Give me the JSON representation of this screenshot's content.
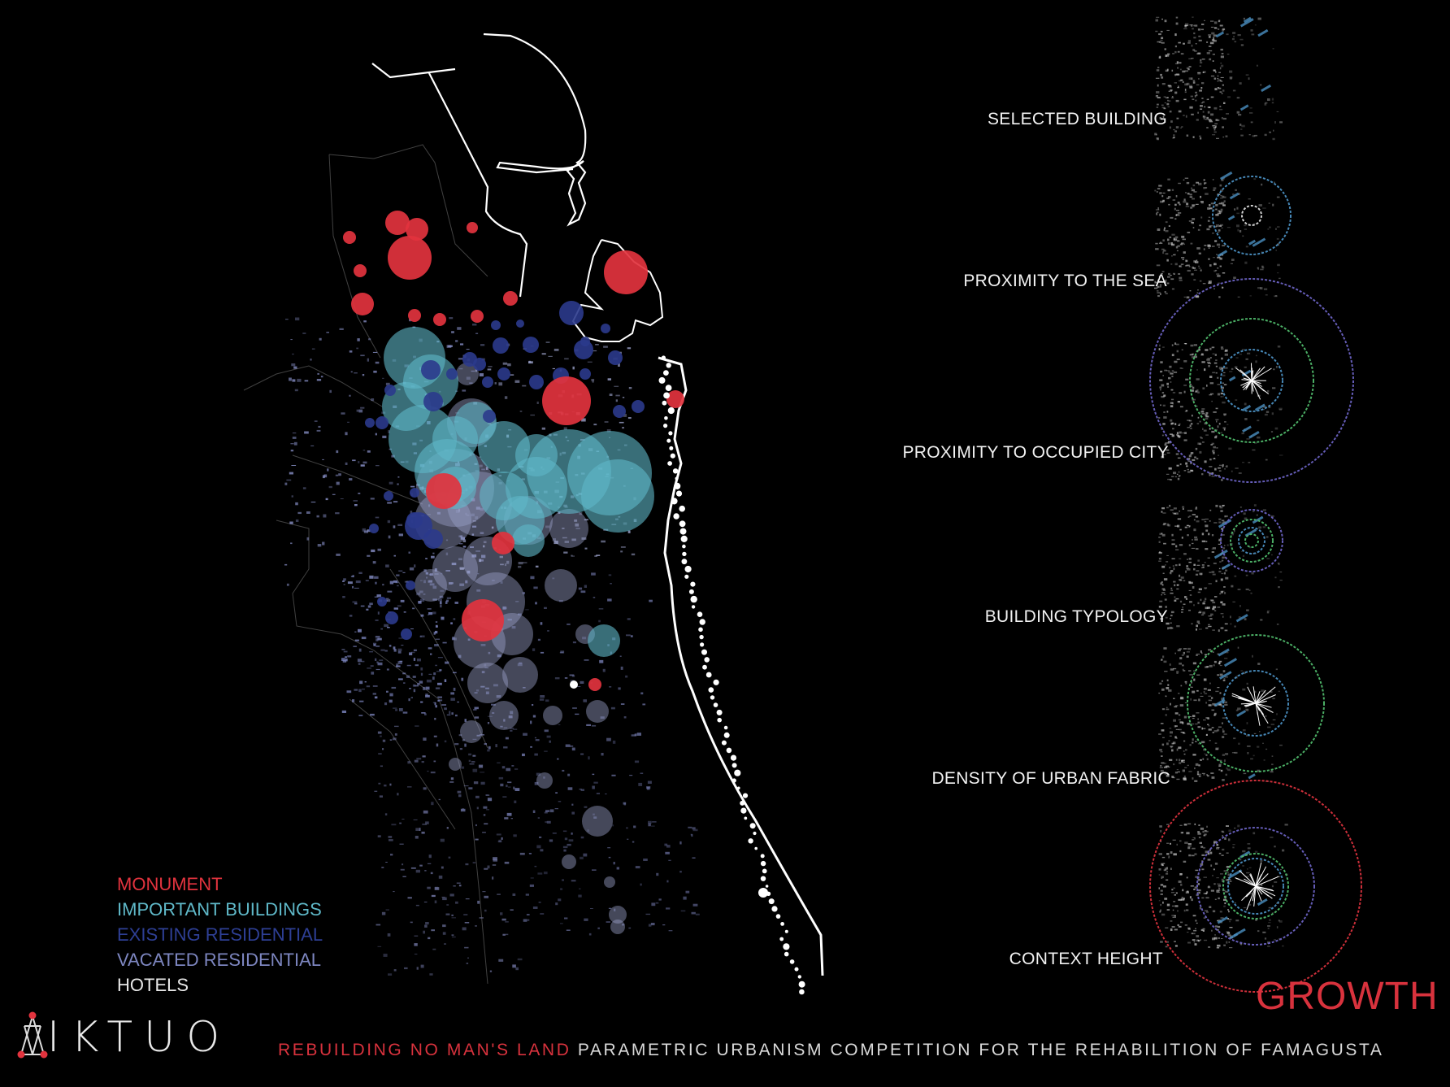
{
  "criteria": [
    {
      "label": "SELECTED BUILDING"
    },
    {
      "label": "PROXIMITY TO THE SEA"
    },
    {
      "label": "PROXIMITY TO OCCUPIED CITY"
    },
    {
      "label": "BUILDING TYPOLOGY"
    },
    {
      "label": "DENSITY OF URBAN FABRIC"
    },
    {
      "label": "CONTEXT  HEIGHT"
    }
  ],
  "legend": {
    "items": [
      {
        "label": "MONUMENT",
        "color": "#e2333e"
      },
      {
        "label": "IMPORTANT BUILDINGS",
        "color": "#5fb8c8"
      },
      {
        "label": "EXISTING RESIDENTIAL",
        "color": "#2b3a8c"
      },
      {
        "label": "VACATED RESIDENTIAL",
        "color": "#7d86c0"
      },
      {
        "label": "HOTELS",
        "color": "#ffffff"
      }
    ]
  },
  "growth_label": "GROWTH",
  "brand": {
    "name": "IKTUO"
  },
  "footer": {
    "highlight": "REBUILDING NO MAN'S LAND",
    "rest": "PARAMETRIC URBANISM COMPETITION FOR THE REHABILITION OF FAMAGUSTA"
  },
  "colors": {
    "monument": "#e2333e",
    "important": "#5fb8c8",
    "existing": "#2b3a8c",
    "vacated": "#9aa0c8",
    "hotel": "#ffffff",
    "ring_blue": "#4a8ec0",
    "ring_green": "#4fb86a",
    "ring_purple": "#6a62c2",
    "ring_red": "#d8323d"
  }
}
